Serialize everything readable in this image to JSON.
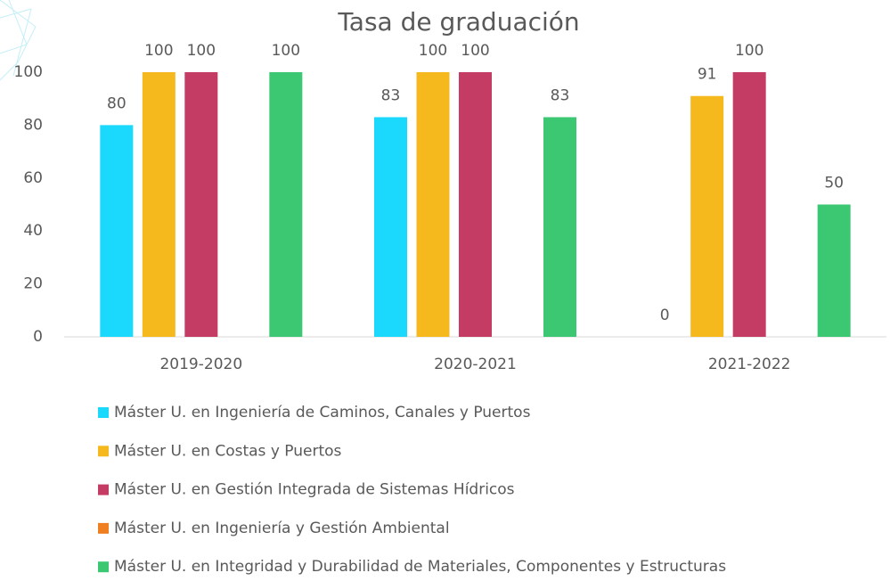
{
  "chart_data": {
    "type": "bar",
    "title": "Tasa de graduación",
    "categories": [
      "2019-2020",
      "2020-2021",
      "2021-2022"
    ],
    "series": [
      {
        "name": "Máster U. en Ingeniería de Caminos, Canales y Puertos",
        "color": "#1ad9fc",
        "values": [
          80,
          83,
          0
        ]
      },
      {
        "name": "Máster U. en Costas y Puertos",
        "color": "#f5b91d",
        "values": [
          100,
          100,
          91
        ]
      },
      {
        "name": "Máster U. en Gestión Integrada de Sistemas Hídricos",
        "color": "#c43c63",
        "values": [
          100,
          100,
          100
        ]
      },
      {
        "name": "Máster U. en Ingeniería y Gestión Ambiental",
        "color": "#f07f22",
        "values": [
          null,
          null,
          null
        ]
      },
      {
        "name": "Máster U. en Integridad y Durabilidad de Materiales, Componentes y Estructuras",
        "color": "#3cc872",
        "values": [
          100,
          83,
          50
        ]
      }
    ],
    "ylim": [
      0,
      100
    ],
    "yticks": [
      0,
      20,
      40,
      60,
      80,
      100
    ],
    "grid": false,
    "legend": "bottom"
  }
}
